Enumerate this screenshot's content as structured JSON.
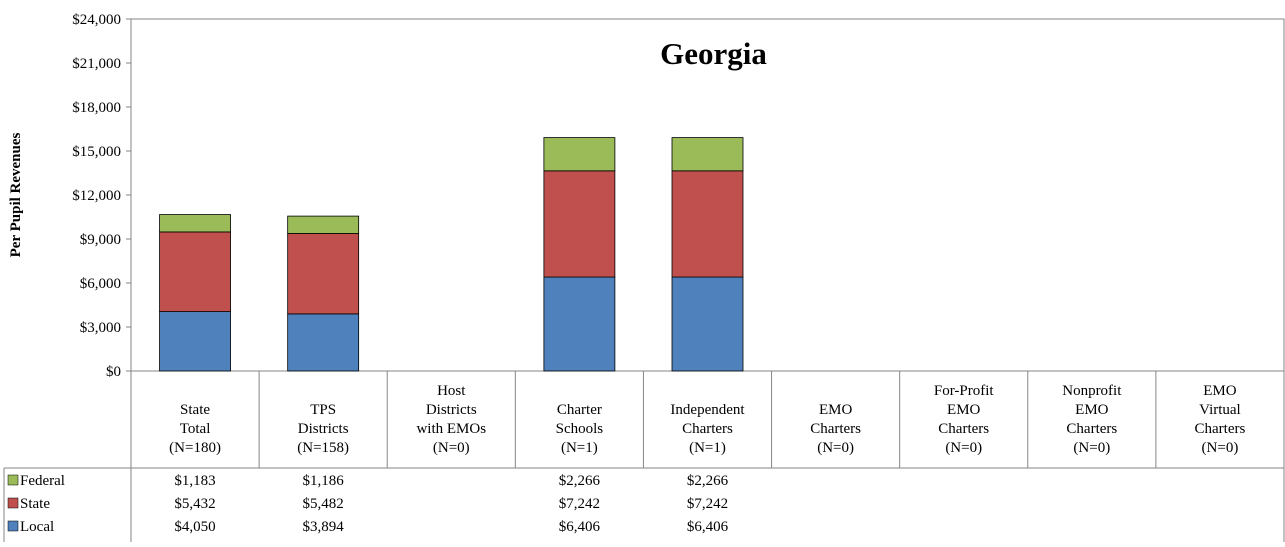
{
  "chart_data": {
    "type": "bar",
    "stacked": true,
    "title": "Georgia",
    "ylabel": "Per Pupil Revenues",
    "ylim": [
      0,
      24000
    ],
    "yticks": [
      0,
      3000,
      6000,
      9000,
      12000,
      15000,
      18000,
      21000,
      24000
    ],
    "ytick_labels": [
      "$0",
      "$3,000",
      "$6,000",
      "$9,000",
      "$12,000",
      "$15,000",
      "$18,000",
      "$21,000",
      "$24,000"
    ],
    "grid": false,
    "legend": "data-table",
    "categories": [
      [
        "State",
        "Total",
        "(N=180)"
      ],
      [
        "TPS",
        "Districts",
        "(N=158)"
      ],
      [
        "Host",
        "Districts",
        "with EMOs",
        "(N=0)"
      ],
      [
        "Charter",
        "Schools",
        "(N=1)"
      ],
      [
        "Independent",
        "Charters",
        "(N=1)"
      ],
      [
        "EMO",
        "Charters",
        "(N=0)"
      ],
      [
        "For-Profit",
        "EMO",
        "Charters",
        "(N=0)"
      ],
      [
        "Nonprofit",
        "EMO",
        "Charters",
        "(N=0)"
      ],
      [
        "EMO",
        "Virtual",
        "Charters",
        "(N=0)"
      ]
    ],
    "series": [
      {
        "name": "Local",
        "color": "#4f81bd",
        "values": [
          4050,
          3894,
          null,
          6406,
          6406,
          null,
          null,
          null,
          null
        ],
        "labels": [
          "$4,050",
          "$3,894",
          "",
          "$6,406",
          "$6,406",
          "",
          "",
          "",
          ""
        ]
      },
      {
        "name": "State",
        "color": "#c0504d",
        "values": [
          5432,
          5482,
          null,
          7242,
          7242,
          null,
          null,
          null,
          null
        ],
        "labels": [
          "$5,432",
          "$5,482",
          "",
          "$7,242",
          "$7,242",
          "",
          "",
          "",
          ""
        ]
      },
      {
        "name": "Federal",
        "color": "#9bbb59",
        "values": [
          1183,
          1186,
          null,
          2266,
          2266,
          null,
          null,
          null,
          null
        ],
        "labels": [
          "$1,183",
          "$1,186",
          "",
          "$2,266",
          "$2,266",
          "",
          "",
          "",
          ""
        ]
      }
    ]
  }
}
